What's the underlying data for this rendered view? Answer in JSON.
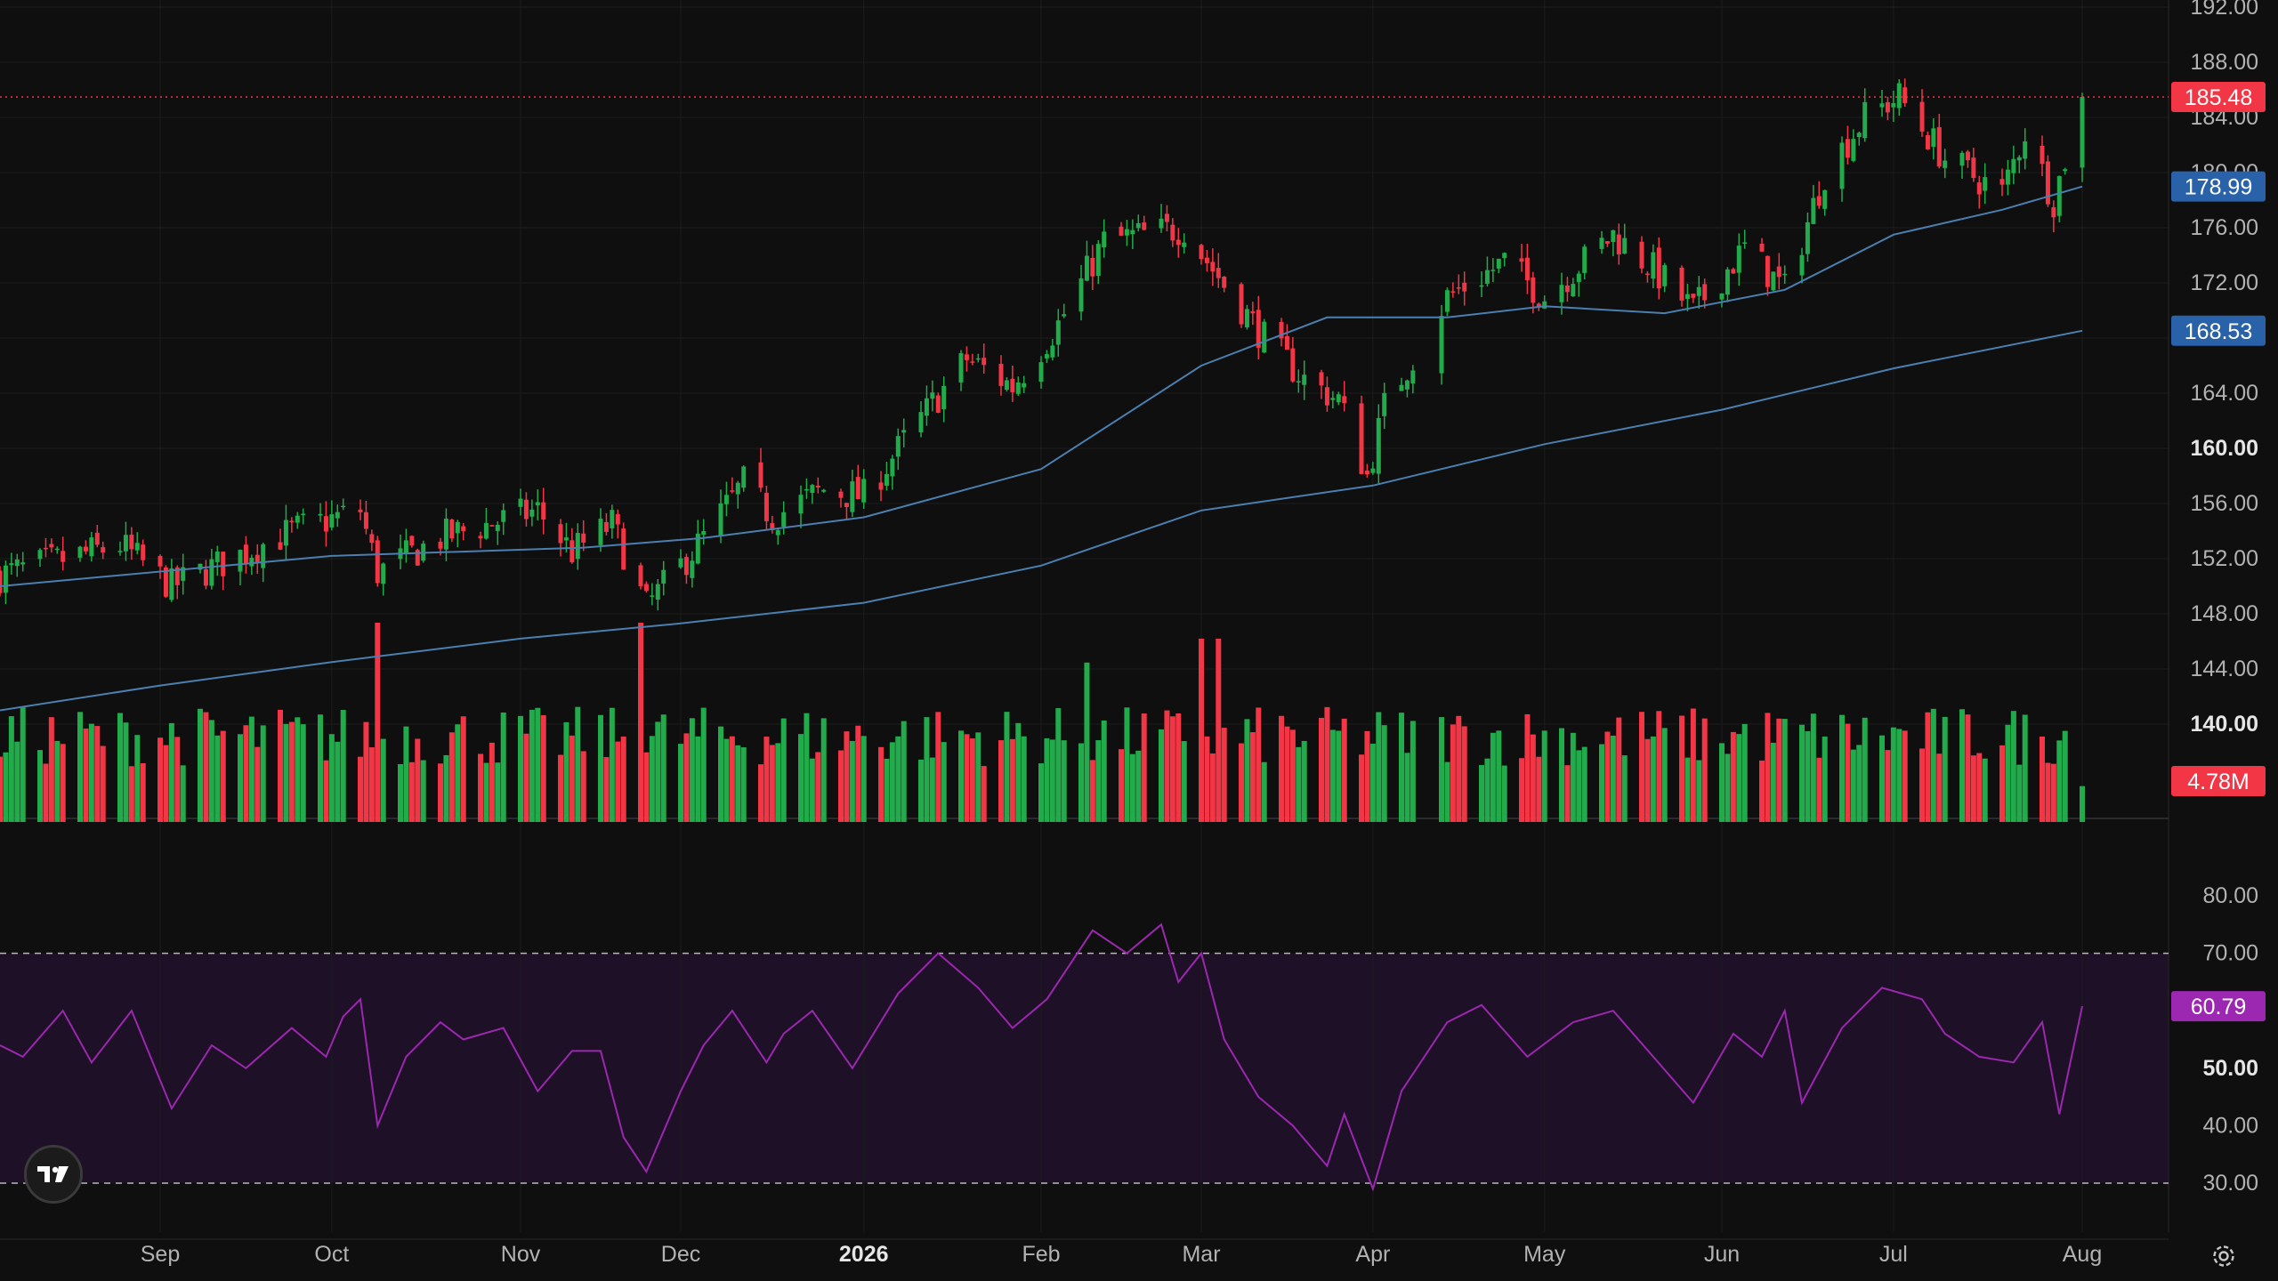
{
  "chart_data": [
    {
      "type": "candlestick",
      "title": "",
      "x_range": [
        "2025-08-04",
        "2026-08-07"
      ],
      "y_axis": {
        "ticks": [
          "192.00",
          "188.00",
          "184.00",
          "180.00",
          "176.00",
          "172.00",
          "168.00",
          "164.00",
          "160.00",
          "156.00",
          "152.00",
          "148.00",
          "144.00",
          "140.00"
        ],
        "bold_ticks": [
          "160.00",
          "140.00"
        ],
        "ylim": [
          138.5,
          192
        ]
      },
      "x_axis": {
        "ticks": [
          {
            "label": "Sep",
            "date": "2025-09-01",
            "bold": false
          },
          {
            "label": "Oct",
            "date": "2025-10-01",
            "bold": false
          },
          {
            "label": "Nov",
            "date": "2025-11-03",
            "bold": false
          },
          {
            "label": "Dec",
            "date": "2025-12-01",
            "bold": false
          },
          {
            "label": "2026",
            "date": "2026-01-02",
            "bold": true
          },
          {
            "label": "Feb",
            "date": "2026-02-02",
            "bold": false
          },
          {
            "label": "Mar",
            "date": "2026-03-02",
            "bold": false
          },
          {
            "label": "Apr",
            "date": "2026-04-01",
            "bold": false
          },
          {
            "label": "May",
            "date": "2026-05-01",
            "bold": false
          },
          {
            "label": "Jun",
            "date": "2026-06-01",
            "bold": false
          },
          {
            "label": "Jul",
            "date": "2026-07-01",
            "bold": false
          },
          {
            "label": "Aug",
            "date": "2026-08-03",
            "bold": false
          }
        ]
      },
      "price_path": [
        {
          "date": "2025-08-04",
          "close": 150.8
        },
        {
          "date": "2025-08-25",
          "close": 153.0
        },
        {
          "date": "2025-09-03",
          "close": 150.0
        },
        {
          "date": "2025-09-24",
          "close": 154.0
        },
        {
          "date": "2025-10-06",
          "close": 155.5
        },
        {
          "date": "2025-10-09",
          "close": 151.0
        },
        {
          "date": "2025-10-20",
          "close": 153.5
        },
        {
          "date": "2025-11-06",
          "close": 155.5
        },
        {
          "date": "2025-11-12",
          "close": 152.5
        },
        {
          "date": "2025-11-19",
          "close": 154.5
        },
        {
          "date": "2025-11-25",
          "close": 148.5
        },
        {
          "date": "2025-12-05",
          "close": 153.5
        },
        {
          "date": "2025-12-12",
          "close": 157.5
        },
        {
          "date": "2025-12-17",
          "close": 155.0
        },
        {
          "date": "2025-12-26",
          "close": 157.0
        },
        {
          "date": "2026-01-02",
          "close": 156.5
        },
        {
          "date": "2026-01-09",
          "close": 160.5
        },
        {
          "date": "2026-01-20",
          "close": 166.5
        },
        {
          "date": "2026-01-28",
          "close": 164.5
        },
        {
          "date": "2026-02-05",
          "close": 169.0
        },
        {
          "date": "2026-02-13",
          "close": 175.0
        },
        {
          "date": "2026-02-27",
          "close": 176.0
        },
        {
          "date": "2026-03-04",
          "close": 173.0
        },
        {
          "date": "2026-03-13",
          "close": 168.0
        },
        {
          "date": "2026-03-20",
          "close": 165.0
        },
        {
          "date": "2026-03-26",
          "close": 163.5
        },
        {
          "date": "2026-03-31",
          "close": 158.0
        },
        {
          "date": "2026-04-03",
          "close": 163.0
        },
        {
          "date": "2026-04-14",
          "close": 171.0
        },
        {
          "date": "2026-04-24",
          "close": 173.5
        },
        {
          "date": "2026-05-01",
          "close": 171.0
        },
        {
          "date": "2026-05-13",
          "close": 175.5
        },
        {
          "date": "2026-05-20",
          "close": 173.0
        },
        {
          "date": "2026-05-27",
          "close": 170.0
        },
        {
          "date": "2026-06-05",
          "close": 174.5
        },
        {
          "date": "2026-06-12",
          "close": 171.5
        },
        {
          "date": "2026-06-19",
          "close": 180.0
        },
        {
          "date": "2026-06-26",
          "close": 184.0
        },
        {
          "date": "2026-07-02",
          "close": 185.5
        },
        {
          "date": "2026-07-10",
          "close": 181.0
        },
        {
          "date": "2026-07-20",
          "close": 178.5
        },
        {
          "date": "2026-07-24",
          "close": 183.0
        },
        {
          "date": "2026-07-29",
          "close": 178.0
        },
        {
          "date": "2026-08-03",
          "close": 185.48
        }
      ],
      "gaps": [
        {
          "from": "2026-04-08",
          "to": "2026-04-13"
        }
      ],
      "moving_averages": [
        {
          "color": "#4a7fb0",
          "last_value": 178.99,
          "points": [
            {
              "date": "2025-08-04",
              "value": 150.0
            },
            {
              "date": "2025-10-01",
              "value": 152.2
            },
            {
              "date": "2025-11-14",
              "value": 152.8
            },
            {
              "date": "2025-12-05",
              "value": 153.5
            },
            {
              "date": "2026-01-02",
              "value": 155.0
            },
            {
              "date": "2026-02-02",
              "value": 158.5
            },
            {
              "date": "2026-03-02",
              "value": 166.0
            },
            {
              "date": "2026-03-24",
              "value": 169.5
            },
            {
              "date": "2026-04-14",
              "value": 169.5
            },
            {
              "date": "2026-05-01",
              "value": 170.3
            },
            {
              "date": "2026-05-22",
              "value": 169.8
            },
            {
              "date": "2026-06-12",
              "value": 171.5
            },
            {
              "date": "2026-07-01",
              "value": 175.5
            },
            {
              "date": "2026-07-20",
              "value": 177.3
            },
            {
              "date": "2026-08-03",
              "value": 178.99
            }
          ]
        },
        {
          "color": "#4a7fb0",
          "last_value": 168.53,
          "points": [
            {
              "date": "2025-08-04",
              "value": 141.0
            },
            {
              "date": "2025-09-01",
              "value": 142.8
            },
            {
              "date": "2025-10-01",
              "value": 144.5
            },
            {
              "date": "2025-11-03",
              "value": 146.2
            },
            {
              "date": "2025-12-01",
              "value": 147.3
            },
            {
              "date": "2026-01-02",
              "value": 148.8
            },
            {
              "date": "2026-02-02",
              "value": 151.5
            },
            {
              "date": "2026-03-02",
              "value": 155.5
            },
            {
              "date": "2026-04-01",
              "value": 157.3
            },
            {
              "date": "2026-05-01",
              "value": 160.3
            },
            {
              "date": "2026-06-01",
              "value": 162.8
            },
            {
              "date": "2026-07-01",
              "value": 165.8
            },
            {
              "date": "2026-08-03",
              "value": 168.53
            }
          ]
        }
      ],
      "volume": {
        "last_value": "4.78M",
        "spikes": [
          {
            "date": "2025-10-09",
            "rel": 1.0
          },
          {
            "date": "2025-11-24",
            "rel": 1.0
          },
          {
            "date": "2026-02-10",
            "rel": 0.8
          },
          {
            "date": "2026-03-02",
            "rel": 0.92
          },
          {
            "date": "2026-03-05",
            "rel": 0.92
          }
        ]
      },
      "price_labels": [
        {
          "value": 185.48,
          "text": "185.48",
          "color": "#f23645",
          "role": "last-price"
        },
        {
          "value": 178.99,
          "text": "178.99",
          "color": "#2962a8",
          "role": "ma-short"
        },
        {
          "value": 168.53,
          "text": "168.53",
          "color": "#2962a8",
          "role": "ma-long"
        },
        {
          "value": null,
          "text": "4.78M",
          "color": "#f23645",
          "role": "volume"
        }
      ],
      "colors": {
        "up": "#22ab4a",
        "down": "#f23645",
        "background": "#0f0f0f",
        "grid": "#1f1f1f"
      }
    },
    {
      "type": "line",
      "indicator": "RSI",
      "ylim": [
        28,
        80
      ],
      "y_axis": {
        "ticks": [
          "80.00",
          "70.00",
          "50.00",
          "40.00",
          "30.00"
        ],
        "bold_ticks": [
          "50.00"
        ]
      },
      "bands": [
        70,
        30
      ],
      "last_value": 60.79,
      "last_label": "60.79",
      "color": "#9c27b0",
      "band_fill": "#1e1026",
      "points": [
        {
          "date": "2025-08-04",
          "value": 54
        },
        {
          "date": "2025-08-08",
          "value": 52
        },
        {
          "date": "2025-08-15",
          "value": 60
        },
        {
          "date": "2025-08-20",
          "value": 51
        },
        {
          "date": "2025-08-27",
          "value": 60
        },
        {
          "date": "2025-09-03",
          "value": 43
        },
        {
          "date": "2025-09-10",
          "value": 54
        },
        {
          "date": "2025-09-16",
          "value": 50
        },
        {
          "date": "2025-09-24",
          "value": 57
        },
        {
          "date": "2025-09-30",
          "value": 52
        },
        {
          "date": "2025-10-03",
          "value": 59
        },
        {
          "date": "2025-10-06",
          "value": 62
        },
        {
          "date": "2025-10-09",
          "value": 40
        },
        {
          "date": "2025-10-14",
          "value": 52
        },
        {
          "date": "2025-10-20",
          "value": 58
        },
        {
          "date": "2025-10-24",
          "value": 55
        },
        {
          "date": "2025-10-31",
          "value": 57
        },
        {
          "date": "2025-11-06",
          "value": 46
        },
        {
          "date": "2025-11-12",
          "value": 53
        },
        {
          "date": "2025-11-17",
          "value": 53
        },
        {
          "date": "2025-11-21",
          "value": 38
        },
        {
          "date": "2025-11-25",
          "value": 32
        },
        {
          "date": "2025-12-01",
          "value": 46
        },
        {
          "date": "2025-12-05",
          "value": 54
        },
        {
          "date": "2025-12-10",
          "value": 60
        },
        {
          "date": "2025-12-16",
          "value": 51
        },
        {
          "date": "2025-12-19",
          "value": 56
        },
        {
          "date": "2025-12-24",
          "value": 60
        },
        {
          "date": "2025-12-31",
          "value": 50
        },
        {
          "date": "2026-01-08",
          "value": 63
        },
        {
          "date": "2026-01-15",
          "value": 70
        },
        {
          "date": "2026-01-22",
          "value": 64
        },
        {
          "date": "2026-01-28",
          "value": 57
        },
        {
          "date": "2026-02-03",
          "value": 62
        },
        {
          "date": "2026-02-11",
          "value": 74
        },
        {
          "date": "2026-02-17",
          "value": 70
        },
        {
          "date": "2026-02-23",
          "value": 75
        },
        {
          "date": "2026-02-26",
          "value": 65
        },
        {
          "date": "2026-03-02",
          "value": 70
        },
        {
          "date": "2026-03-06",
          "value": 55
        },
        {
          "date": "2026-03-12",
          "value": 45
        },
        {
          "date": "2026-03-18",
          "value": 40
        },
        {
          "date": "2026-03-24",
          "value": 33
        },
        {
          "date": "2026-03-27",
          "value": 42
        },
        {
          "date": "2026-04-01",
          "value": 29
        },
        {
          "date": "2026-04-06",
          "value": 46
        },
        {
          "date": "2026-04-14",
          "value": 58
        },
        {
          "date": "2026-04-20",
          "value": 61
        },
        {
          "date": "2026-04-28",
          "value": 52
        },
        {
          "date": "2026-05-06",
          "value": 58
        },
        {
          "date": "2026-05-13",
          "value": 60
        },
        {
          "date": "2026-05-20",
          "value": 52
        },
        {
          "date": "2026-05-27",
          "value": 44
        },
        {
          "date": "2026-06-03",
          "value": 56
        },
        {
          "date": "2026-06-08",
          "value": 52
        },
        {
          "date": "2026-06-12",
          "value": 60
        },
        {
          "date": "2026-06-15",
          "value": 44
        },
        {
          "date": "2026-06-22",
          "value": 57
        },
        {
          "date": "2026-06-29",
          "value": 64
        },
        {
          "date": "2026-07-06",
          "value": 62
        },
        {
          "date": "2026-07-10",
          "value": 56
        },
        {
          "date": "2026-07-16",
          "value": 52
        },
        {
          "date": "2026-07-22",
          "value": 51
        },
        {
          "date": "2026-07-27",
          "value": 58
        },
        {
          "date": "2026-07-30",
          "value": 42
        },
        {
          "date": "2026-08-03",
          "value": 60.79
        }
      ]
    }
  ]
}
